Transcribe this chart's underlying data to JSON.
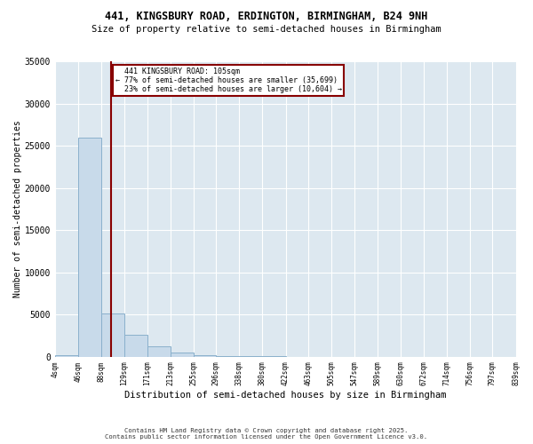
{
  "title1": "441, KINGSBURY ROAD, ERDINGTON, BIRMINGHAM, B24 9NH",
  "title2": "Size of property relative to semi-detached houses in Birmingham",
  "xlabel": "Distribution of semi-detached houses by size in Birmingham",
  "ylabel": "Number of semi-detached properties",
  "bin_edges": [
    4,
    46,
    88,
    129,
    171,
    213,
    255,
    296,
    338,
    380,
    422,
    463,
    505,
    547,
    589,
    630,
    672,
    714,
    756,
    797,
    839
  ],
  "bar_heights": [
    150,
    26000,
    5100,
    2600,
    1200,
    500,
    200,
    100,
    60,
    40,
    25,
    18,
    12,
    8,
    6,
    4,
    3,
    2,
    2,
    1
  ],
  "bar_color": "#c8daea",
  "bar_edge_color": "#8ab0cc",
  "property_size": 105,
  "property_label": "441 KINGSBURY ROAD: 105sqm",
  "pct_smaller": 77,
  "n_smaller": 35699,
  "pct_larger": 23,
  "n_larger": 10604,
  "vline_color": "#880000",
  "annotation_box_color": "#880000",
  "ylim": [
    0,
    35000
  ],
  "yticks": [
    0,
    5000,
    10000,
    15000,
    20000,
    25000,
    30000,
    35000
  ],
  "background_color": "#dde8f0",
  "grid_color": "#ffffff",
  "footer1": "Contains HM Land Registry data © Crown copyright and database right 2025.",
  "footer2": "Contains public sector information licensed under the Open Government Licence v3.0."
}
